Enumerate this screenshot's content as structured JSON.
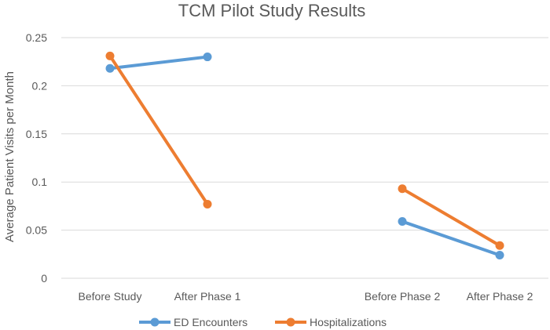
{
  "chart_data": {
    "type": "line",
    "title": "TCM Pilot Study Results",
    "xlabel": "",
    "ylabel": "Average Patient Visits per Month",
    "categories": [
      "Before Study",
      "After Phase 1",
      "",
      "Before Phase 2",
      "After Phase 2"
    ],
    "ylim": [
      0,
      0.25
    ],
    "yticks": [
      "0",
      "0.05",
      "0.1",
      "0.15",
      "0.2",
      "0.25"
    ],
    "grid": true,
    "legend_position": "bottom",
    "series": [
      {
        "name": "ED Encounters",
        "color": "#5B9BD5",
        "values": [
          0.218,
          0.23,
          null,
          0.059,
          0.024
        ]
      },
      {
        "name": "Hospitalizations",
        "color": "#ED7D31",
        "values": [
          0.231,
          0.077,
          null,
          0.093,
          0.034
        ]
      }
    ]
  }
}
